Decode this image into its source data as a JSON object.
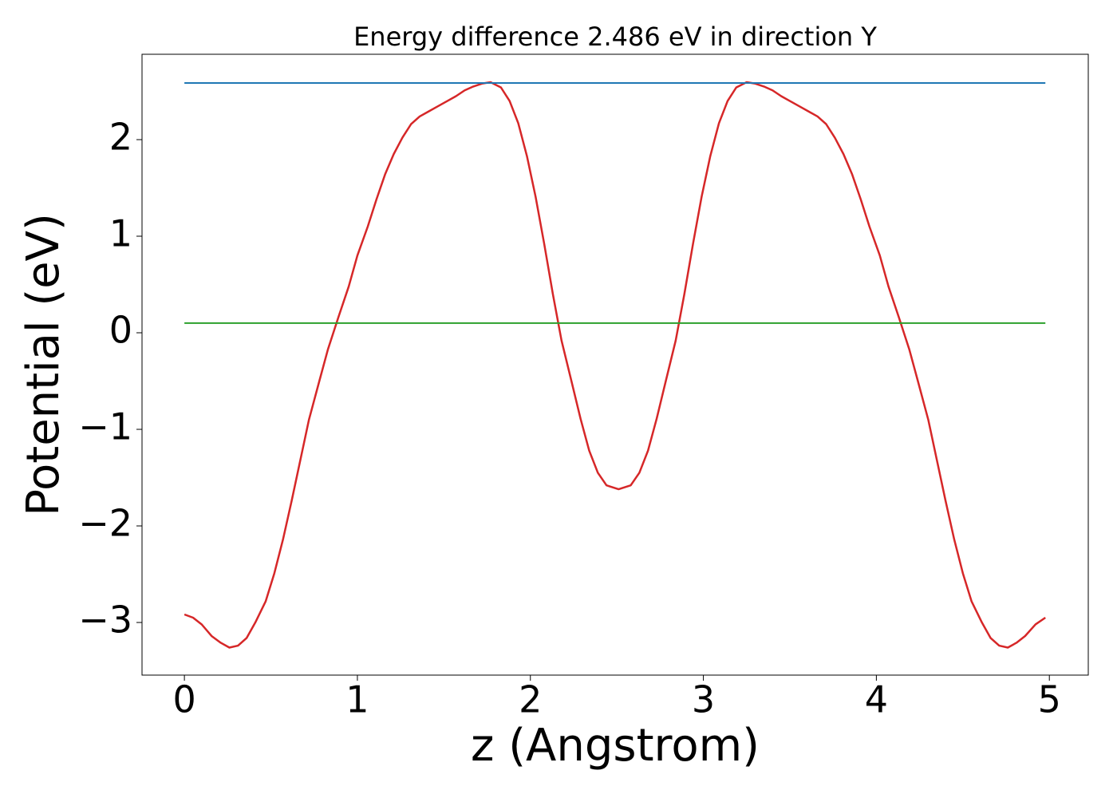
{
  "chart_data": {
    "type": "line",
    "title": "Energy difference 2.486 eV in direction Y",
    "xlabel": "z (Angstrom)",
    "ylabel": "Potential (eV)",
    "xlim": [
      -0.245,
      5.225
    ],
    "ylim": [
      -3.545,
      2.884
    ],
    "xticks": [
      0,
      1,
      2,
      3,
      4,
      5
    ],
    "yticks": [
      {
        "value": -3,
        "label": "−3"
      },
      {
        "value": -2,
        "label": "−2"
      },
      {
        "value": -1,
        "label": "−1"
      },
      0,
      1,
      2
    ],
    "series": [
      {
        "color": "#d62728",
        "x": [
          0,
          0.05,
          0.1,
          0.157,
          0.21,
          0.26,
          0.31,
          0.36,
          0.41,
          0.47,
          0.52,
          0.57,
          0.62,
          0.67,
          0.72,
          0.78,
          0.83,
          0.89,
          0.95,
          1.0,
          1.06,
          1.11,
          1.16,
          1.21,
          1.26,
          1.31,
          1.36,
          1.41,
          1.46,
          1.52,
          1.57,
          1.62,
          1.67,
          1.72,
          1.77,
          1.83,
          1.88,
          1.93,
          1.98,
          2.03,
          2.08,
          2.13,
          2.18,
          2.24,
          2.29,
          2.34,
          2.39,
          2.44,
          2.51,
          2.58,
          2.63,
          2.68,
          2.73,
          2.78,
          2.84,
          2.89,
          2.94,
          2.99,
          3.04,
          3.09,
          3.14,
          3.19,
          3.25,
          3.3,
          3.35,
          3.4,
          3.45,
          3.5,
          3.56,
          3.61,
          3.66,
          3.71,
          3.76,
          3.81,
          3.86,
          3.91,
          3.96,
          4.02,
          4.07,
          4.13,
          4.19,
          4.24,
          4.3,
          4.35,
          4.4,
          4.45,
          4.5,
          4.55,
          4.61,
          4.66,
          4.71,
          4.76,
          4.81,
          4.86,
          4.92,
          4.977
        ],
        "values": [
          -2.917,
          -2.95,
          -3.02,
          -3.14,
          -3.21,
          -3.26,
          -3.24,
          -3.16,
          -3.0,
          -2.78,
          -2.49,
          -2.14,
          -1.74,
          -1.32,
          -0.9,
          -0.5,
          -0.17,
          0.16,
          0.48,
          0.8,
          1.1,
          1.38,
          1.64,
          1.85,
          2.02,
          2.16,
          2.24,
          2.29,
          2.34,
          2.4,
          2.45,
          2.51,
          2.55,
          2.58,
          2.595,
          2.54,
          2.4,
          2.17,
          1.83,
          1.41,
          0.92,
          0.4,
          -0.08,
          -0.52,
          -0.89,
          -1.22,
          -1.45,
          -1.58,
          -1.62,
          -1.58,
          -1.45,
          -1.22,
          -0.89,
          -0.52,
          -0.08,
          0.4,
          0.92,
          1.41,
          1.83,
          2.17,
          2.4,
          2.54,
          2.595,
          2.58,
          2.55,
          2.51,
          2.45,
          2.4,
          2.34,
          2.29,
          2.24,
          2.16,
          2.02,
          1.85,
          1.64,
          1.38,
          1.1,
          0.8,
          0.48,
          0.16,
          -0.17,
          -0.5,
          -0.9,
          -1.32,
          -1.74,
          -2.14,
          -2.49,
          -2.78,
          -3.0,
          -3.16,
          -3.24,
          -3.26,
          -3.21,
          -3.14,
          -3.02,
          -2.95
        ]
      },
      {
        "color": "#1f77b4",
        "x": [
          0,
          4.977
        ],
        "values": [
          2.587,
          2.587
        ]
      },
      {
        "color": "#2ca02c",
        "x": [
          0,
          4.977
        ],
        "values": [
          0.1,
          0.1
        ]
      }
    ]
  }
}
